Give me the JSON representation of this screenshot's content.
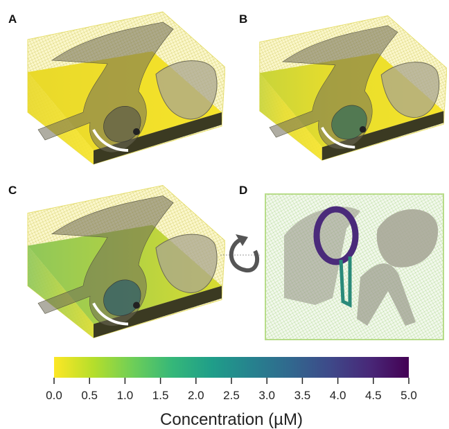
{
  "panels": [
    {
      "label": "A"
    },
    {
      "label": "B"
    },
    {
      "label": "C"
    },
    {
      "label": "D"
    }
  ],
  "colorbar": {
    "label": "Concentration (µM)",
    "lim": [
      0,
      5
    ],
    "colors": [
      "#fde725",
      "#b5de2b",
      "#6ece58",
      "#35b779",
      "#1f9e89",
      "#26828e",
      "#31688e",
      "#3e4989",
      "#482878",
      "#440154"
    ],
    "ticks": [
      {
        "value": 0,
        "label": "0.0"
      },
      0.5,
      {
        "value": 1,
        "label": "1.0"
      },
      1.5,
      {
        "value": 2,
        "label": "2.0"
      },
      2.5,
      {
        "value": 3,
        "label": "3.0"
      },
      3.5,
      {
        "value": 4,
        "label": "4.0"
      },
      4.5,
      {
        "value": 5,
        "label": "5.0"
      }
    ]
  }
}
